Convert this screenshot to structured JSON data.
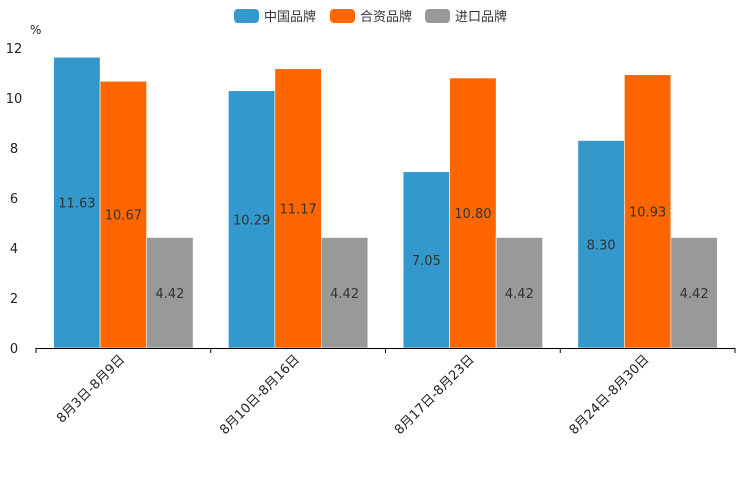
{
  "chart_data": {
    "type": "bar",
    "title": "",
    "ylabel": "%",
    "xlabel": "",
    "ylim": [
      0,
      12
    ],
    "yticks": [
      0,
      2,
      4,
      6,
      8,
      10,
      12
    ],
    "categories": [
      "8月3日-8月9日",
      "8月10日-8月16日",
      "8月17日-8月23日",
      "8月24日-8月30日"
    ],
    "series": [
      {
        "name": "中国品牌",
        "color": "#3399CC",
        "values": [
          11.63,
          10.29,
          7.05,
          8.3
        ],
        "labels": [
          "11.63",
          "10.29",
          "7.05",
          "8.30"
        ]
      },
      {
        "name": "合资品牌",
        "color": "#FF6600",
        "values": [
          10.67,
          11.17,
          10.8,
          10.93
        ],
        "labels": [
          "10.67",
          "11.17",
          "10.80",
          "10.93"
        ]
      },
      {
        "name": "进口品牌",
        "color": "#999999",
        "values": [
          4.42,
          4.42,
          4.42,
          4.42
        ],
        "labels": [
          "4.42",
          "4.42",
          "4.42",
          "4.42"
        ]
      }
    ],
    "legend_position": "top-center",
    "grid": false
  }
}
